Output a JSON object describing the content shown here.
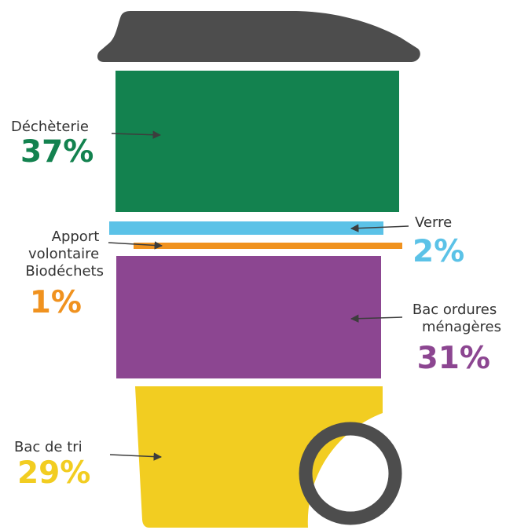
{
  "chart_data": {
    "type": "pie",
    "title": "",
    "categories": [
      "Déchèterie",
      "Verre",
      "Apport volontaire Biodéchets",
      "Bac ordures ménagères",
      "Bac de tri"
    ],
    "values": [
      37,
      2,
      1,
      31,
      29
    ],
    "unit": "%",
    "colors": [
      "#13824f",
      "#5bc2e7",
      "#f0921f",
      "#8c4691",
      "#f2cd21"
    ],
    "segments": [
      {
        "label_lines": [
          "Déchèterie"
        ],
        "value_text": "37%",
        "value": 37,
        "color": "#13824f"
      },
      {
        "label_lines": [
          "Verre"
        ],
        "value_text": "2%",
        "value": 2,
        "color": "#5bc2e7"
      },
      {
        "label_lines": [
          "Apport",
          "volontaire",
          "Biodéchets"
        ],
        "value_text": "1%",
        "value": 1,
        "color": "#f0921f"
      },
      {
        "label_lines": [
          "Bac ordures",
          "ménagères"
        ],
        "value_text": "31%",
        "value": 31,
        "color": "#8c4691"
      },
      {
        "label_lines": [
          "Bac de tri"
        ],
        "value_text": "29%",
        "value": 29,
        "color": "#f2cd21"
      }
    ]
  },
  "style": {
    "lid_color": "#4d4d4d",
    "wheel_color": "#4d4d4d",
    "arrow_color": "#3d3d3d",
    "label_color": "#333333"
  }
}
